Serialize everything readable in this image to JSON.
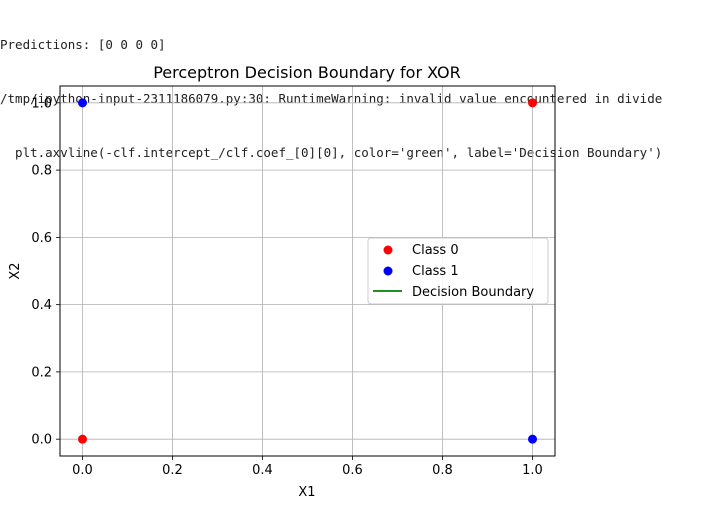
{
  "console": {
    "lines": [
      "Predictions: [0 0 0 0]",
      "/tmp/ipython-input-2311186079.py:30: RuntimeWarning: invalid value encountered in divide",
      "  plt.axvline(-clf.intercept_/clf.coef_[0][0], color='green', label='Decision Boundary')"
    ]
  },
  "chart_data": {
    "type": "scatter",
    "title": "Perceptron Decision Boundary for XOR",
    "xlabel": "X1",
    "ylabel": "X2",
    "xlim": [
      -0.05,
      1.05
    ],
    "ylim": [
      -0.05,
      1.05
    ],
    "xticks": [
      0.0,
      0.2,
      0.4,
      0.6,
      0.8,
      1.0
    ],
    "yticks": [
      0.0,
      0.2,
      0.4,
      0.6,
      0.8,
      1.0
    ],
    "xtick_labels": [
      "0.0",
      "0.2",
      "0.4",
      "0.6",
      "0.8",
      "1.0"
    ],
    "ytick_labels": [
      "0.0",
      "0.2",
      "0.4",
      "0.6",
      "0.8",
      "1.0"
    ],
    "grid": true,
    "legend_placement": "center-right",
    "series": [
      {
        "name": "Class 0",
        "color": "#ff0000",
        "marker": "circle",
        "x": [
          0,
          1
        ],
        "y": [
          0,
          1
        ]
      },
      {
        "name": "Class 1",
        "color": "#0000ff",
        "marker": "circle",
        "x": [
          0,
          1
        ],
        "y": [
          1,
          0
        ]
      }
    ],
    "lines": [
      {
        "name": "Decision Boundary",
        "color": "#008000",
        "orientation": "vertical"
      }
    ]
  }
}
